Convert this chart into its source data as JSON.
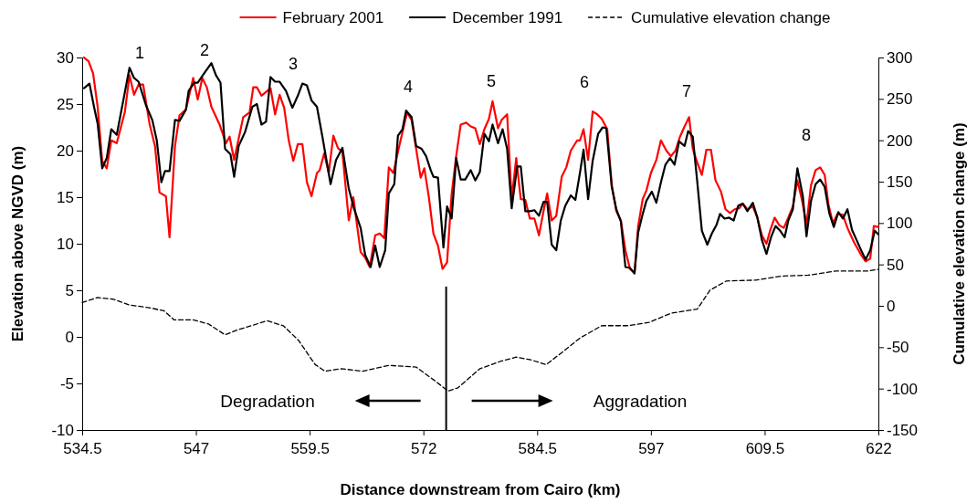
{
  "chart_data": {
    "type": "line",
    "xlabel": "Distance downstream from Cairo (km)",
    "ylabel": "Elevation above NGVD (m)",
    "y2label": "Cumulative elevation change (m)",
    "xlim": [
      534.5,
      622
    ],
    "xticks": [
      534.5,
      547,
      559.5,
      572,
      584.5,
      597,
      609.5,
      622
    ],
    "ylim": [
      -10,
      30
    ],
    "yticks": [
      -10,
      -5,
      0,
      5,
      10,
      15,
      20,
      25,
      30
    ],
    "y2lim": [
      -150,
      300
    ],
    "y2ticks": [
      -150,
      -100,
      -50,
      0,
      50,
      100,
      150,
      200,
      250,
      300
    ],
    "legend": "top",
    "series": [
      {
        "name": "February 2001",
        "color": "#ff0000",
        "line_style": "solid",
        "x": [
          534.7,
          535.2,
          535.7,
          536.2,
          536.7,
          537.2,
          537.7,
          538.3,
          539.2,
          539.7,
          540.2,
          540.7,
          541.2,
          541.9,
          542.5,
          543.0,
          543.7,
          544.1,
          544.7,
          545.2,
          545.9,
          546.7,
          547.2,
          547.7,
          548.2,
          548.7,
          549.6,
          550.3,
          550.7,
          551.2,
          552.2,
          552.9,
          553.3,
          553.7,
          554.2,
          555.2,
          555.7,
          556.2,
          556.7,
          557.2,
          557.7,
          558.2,
          558.7,
          559.2,
          559.7,
          560.3,
          560.6,
          561.1,
          561.6,
          562.1,
          562.6,
          563.1,
          563.8,
          564.3,
          565.1,
          565.6,
          566.1,
          566.7,
          567.2,
          567.7,
          568.2,
          568.7,
          569.3,
          570.2,
          570.7,
          571.2,
          571.7,
          572.1,
          572.6,
          573.1,
          573.6,
          574.1,
          574.6,
          575.1,
          575.6,
          576.1,
          576.7,
          577.2,
          577.7,
          578.2,
          578.7,
          579.2,
          579.6,
          580.2,
          580.6,
          581.2,
          581.7,
          582.2,
          582.7,
          583.2,
          583.7,
          584.2,
          584.7,
          585.2,
          585.6,
          586.1,
          586.6,
          587.2,
          587.7,
          588.2,
          588.9,
          589.2,
          589.6,
          590.1,
          590.6,
          591.1,
          591.6,
          592.2,
          592.7,
          593.2,
          593.7,
          594.2,
          594.7,
          595.2,
          595.6,
          596.1,
          596.5,
          597.0,
          597.6,
          598.1,
          598.7,
          599.2,
          599.7,
          600.2,
          600.7,
          601.2,
          601.6,
          602.1,
          602.6,
          603.1,
          603.6,
          604.1,
          604.7,
          605.2,
          605.7,
          606.2,
          606.7,
          607.1,
          607.6,
          608.2,
          608.7,
          609.2,
          609.7,
          610.1,
          610.6,
          611.1,
          611.6,
          612.1,
          612.6,
          613.1,
          613.6,
          614.1,
          614.6,
          615.1,
          615.6,
          616.1,
          616.5,
          617.0,
          617.5,
          618.1,
          618.6,
          619.3,
          620.1,
          620.6,
          621.1,
          621.5,
          622.0
        ],
        "values": [
          30.0,
          29.6,
          28.3,
          24.7,
          18.9,
          18.1,
          21.1,
          20.8,
          24.2,
          28.1,
          26.0,
          27.1,
          27.1,
          22.9,
          20.5,
          15.5,
          15.1,
          10.7,
          20.5,
          23.8,
          24.4,
          27.8,
          25.5,
          27.8,
          26.8,
          24.7,
          22.8,
          20.8,
          21.5,
          19.0,
          23.6,
          24.1,
          26.8,
          26.8,
          25.9,
          26.7,
          23.9,
          26.0,
          24.6,
          21.1,
          18.9,
          20.7,
          20.7,
          16.6,
          15.1,
          17.6,
          17.9,
          19.7,
          17.6,
          21.6,
          20.3,
          19.8,
          12.5,
          15.0,
          9.1,
          8.5,
          7.5,
          10.9,
          11.1,
          10.6,
          18.2,
          17.6,
          20.3,
          24.1,
          23.3,
          20.2,
          17.1,
          18.1,
          15.0,
          11.1,
          9.8,
          7.3,
          8.0,
          15.3,
          19.4,
          22.8,
          23.0,
          22.6,
          22.4,
          20.7,
          22.3,
          23.4,
          25.3,
          22.4,
          23.3,
          23.9,
          14.8,
          19.2,
          14.8,
          14.7,
          12.7,
          12.7,
          10.9,
          13.5,
          15.4,
          12.5,
          13.0,
          17.2,
          18.2,
          20.0,
          21.1,
          21.1,
          22.3,
          19.0,
          24.2,
          23.9,
          23.4,
          22.3,
          16.3,
          13.5,
          12.5,
          9.3,
          7.3,
          6.9,
          11.9,
          14.8,
          15.7,
          17.6,
          19.0,
          21.1,
          20.0,
          19.4,
          20.0,
          21.5,
          22.6,
          23.6,
          20.2,
          18.7,
          17.4,
          20.1,
          20.1,
          16.8,
          15.6,
          13.7,
          13.3,
          13.7,
          13.8,
          14.3,
          13.7,
          14.0,
          12.8,
          10.9,
          10.0,
          11.4,
          12.8,
          12.0,
          11.7,
          12.8,
          14.0,
          16.8,
          14.7,
          12.1,
          16.3,
          17.9,
          18.2,
          17.4,
          14.3,
          12.2,
          13.2,
          13.1,
          11.7,
          10.2,
          8.8,
          8.1,
          8.4,
          11.9,
          11.8
        ]
      },
      {
        "name": "December 1991",
        "color": "#000000",
        "line_style": "solid",
        "x": [
          534.7,
          535.3,
          535.8,
          536.2,
          536.7,
          537.2,
          537.7,
          538.3,
          539.7,
          540.2,
          540.7,
          541.5,
          542.2,
          542.7,
          543.2,
          543.6,
          544.1,
          544.7,
          545.2,
          545.9,
          546.2,
          546.8,
          547.2,
          547.9,
          548.7,
          549.2,
          549.7,
          550.2,
          550.8,
          551.2,
          551.7,
          552.4,
          553.2,
          553.7,
          554.2,
          554.7,
          555.2,
          555.7,
          556.2,
          556.9,
          557.6,
          558.2,
          558.7,
          559.2,
          559.7,
          560.3,
          560.9,
          561.8,
          562.4,
          563.1,
          563.8,
          564.4,
          565.1,
          565.6,
          566.2,
          566.7,
          567.2,
          567.8,
          568.2,
          568.8,
          569.2,
          569.7,
          570.1,
          570.7,
          571.2,
          571.8,
          572.3,
          572.8,
          573.1,
          573.6,
          574.2,
          574.6,
          575.1,
          575.6,
          576.1,
          576.6,
          577.2,
          577.7,
          578.2,
          578.7,
          579.2,
          579.6,
          580.2,
          580.7,
          581.2,
          581.7,
          582.3,
          582.7,
          583.2,
          583.7,
          584.2,
          584.7,
          585.2,
          585.6,
          586.1,
          586.6,
          587.1,
          587.6,
          588.2,
          588.7,
          589.2,
          589.6,
          590.1,
          590.6,
          591.2,
          591.7,
          592.1,
          592.7,
          593.2,
          593.7,
          594.2,
          594.7,
          595.2,
          595.6,
          596.1,
          596.5,
          597.1,
          597.6,
          598.1,
          598.6,
          599.1,
          599.6,
          600.1,
          600.7,
          601.1,
          601.6,
          602.1,
          602.6,
          603.2,
          603.7,
          604.2,
          604.6,
          605.1,
          605.6,
          606.1,
          606.6,
          607.1,
          607.6,
          608.2,
          608.7,
          609.2,
          609.7,
          610.2,
          610.7,
          611.2,
          611.7,
          612.1,
          612.6,
          613.1,
          613.7,
          614.1,
          614.6,
          615.1,
          615.6,
          616.1,
          616.6,
          617.1,
          617.6,
          618.1,
          618.6,
          619.1,
          619.6,
          620.1,
          620.6,
          621.1,
          621.6,
          622.0
        ],
        "values": [
          26.7,
          27.2,
          24.7,
          22.9,
          18.1,
          19.2,
          22.3,
          21.7,
          28.9,
          27.8,
          27.4,
          24.9,
          23.3,
          21.1,
          16.6,
          17.8,
          17.8,
          23.3,
          23.2,
          24.4,
          26.4,
          27.3,
          27.3,
          28.3,
          29.4,
          28.1,
          27.3,
          20.2,
          19.6,
          17.2,
          20.5,
          22.0,
          24.7,
          25.0,
          22.8,
          23.1,
          27.9,
          27.4,
          27.4,
          26.4,
          24.6,
          25.9,
          27.2,
          27.0,
          25.4,
          24.7,
          21.5,
          16.4,
          19.0,
          20.3,
          15.9,
          13.7,
          11.7,
          8.8,
          7.5,
          9.8,
          7.5,
          9.3,
          15.4,
          16.4,
          21.6,
          22.3,
          24.3,
          23.6,
          20.5,
          20.2,
          19.4,
          17.9,
          17.2,
          17.1,
          9.6,
          14.0,
          12.7,
          19.2,
          16.9,
          16.9,
          17.9,
          16.8,
          17.7,
          21.8,
          21.0,
          22.8,
          20.8,
          22.3,
          20.2,
          13.8,
          18.3,
          18.3,
          13.5,
          13.5,
          13.6,
          13.0,
          14.5,
          14.5,
          9.9,
          9.3,
          12.5,
          14.1,
          15.2,
          14.7,
          17.6,
          20.1,
          14.8,
          18.9,
          21.8,
          22.5,
          22.4,
          16.1,
          13.7,
          12.4,
          7.5,
          7.4,
          6.8,
          11.2,
          13.2,
          14.6,
          15.6,
          14.4,
          16.6,
          18.5,
          19.2,
          18.5,
          21.0,
          20.5,
          22.1,
          21.5,
          16.6,
          11.4,
          9.9,
          11.1,
          12.0,
          13.2,
          12.7,
          12.8,
          12.5,
          14.1,
          14.3,
          13.5,
          14.4,
          12.8,
          10.4,
          8.9,
          10.7,
          11.9,
          11.4,
          10.7,
          12.5,
          13.7,
          18.1,
          15.1,
          10.8,
          14.6,
          16.4,
          16.9,
          16.1,
          13.3,
          11.8,
          13.4,
          12.7,
          13.7,
          11.5,
          10.4,
          9.3,
          8.3,
          9.3,
          11.4,
          11.0
        ]
      },
      {
        "name": "Cumulative elevation change",
        "color": "#000000",
        "line_style": "dashed",
        "axis": "y2",
        "x": [
          534.5,
          536.2,
          537.9,
          539.7,
          541.7,
          543.5,
          544.6,
          546.7,
          548.4,
          550.2,
          551.6,
          553.1,
          554.8,
          556.6,
          558.3,
          560.1,
          561.2,
          563.0,
          565.3,
          568.2,
          571.2,
          573.2,
          574.7,
          575.8,
          578.2,
          580.5,
          582.2,
          583.7,
          585.5,
          587.5,
          589.2,
          591.6,
          594.5,
          596.8,
          599.2,
          602.1,
          603.5,
          605.3,
          608.5,
          611.4,
          614.3,
          617.3,
          620.8,
          622.0
        ],
        "values": [
          4,
          10,
          8,
          1,
          -2,
          -6,
          -17,
          -17,
          -22,
          -35,
          -29,
          -24,
          -18,
          -24,
          -42,
          -71,
          -79,
          -76,
          -79,
          -72,
          -74,
          -90,
          -103,
          -99,
          -76,
          -67,
          -62,
          -65,
          -71,
          -54,
          -39,
          -24,
          -24,
          -20,
          -9,
          -4,
          19,
          30,
          31,
          36,
          37,
          42,
          42,
          44
        ]
      }
    ],
    "ref_lines": [
      {
        "axis": "x",
        "value": 574.5,
        "color": "#000000"
      }
    ],
    "annotations": [
      "1",
      "2",
      "3",
      "4",
      "5",
      "6",
      "7",
      "8",
      "Degradation",
      "Aggradation"
    ]
  }
}
